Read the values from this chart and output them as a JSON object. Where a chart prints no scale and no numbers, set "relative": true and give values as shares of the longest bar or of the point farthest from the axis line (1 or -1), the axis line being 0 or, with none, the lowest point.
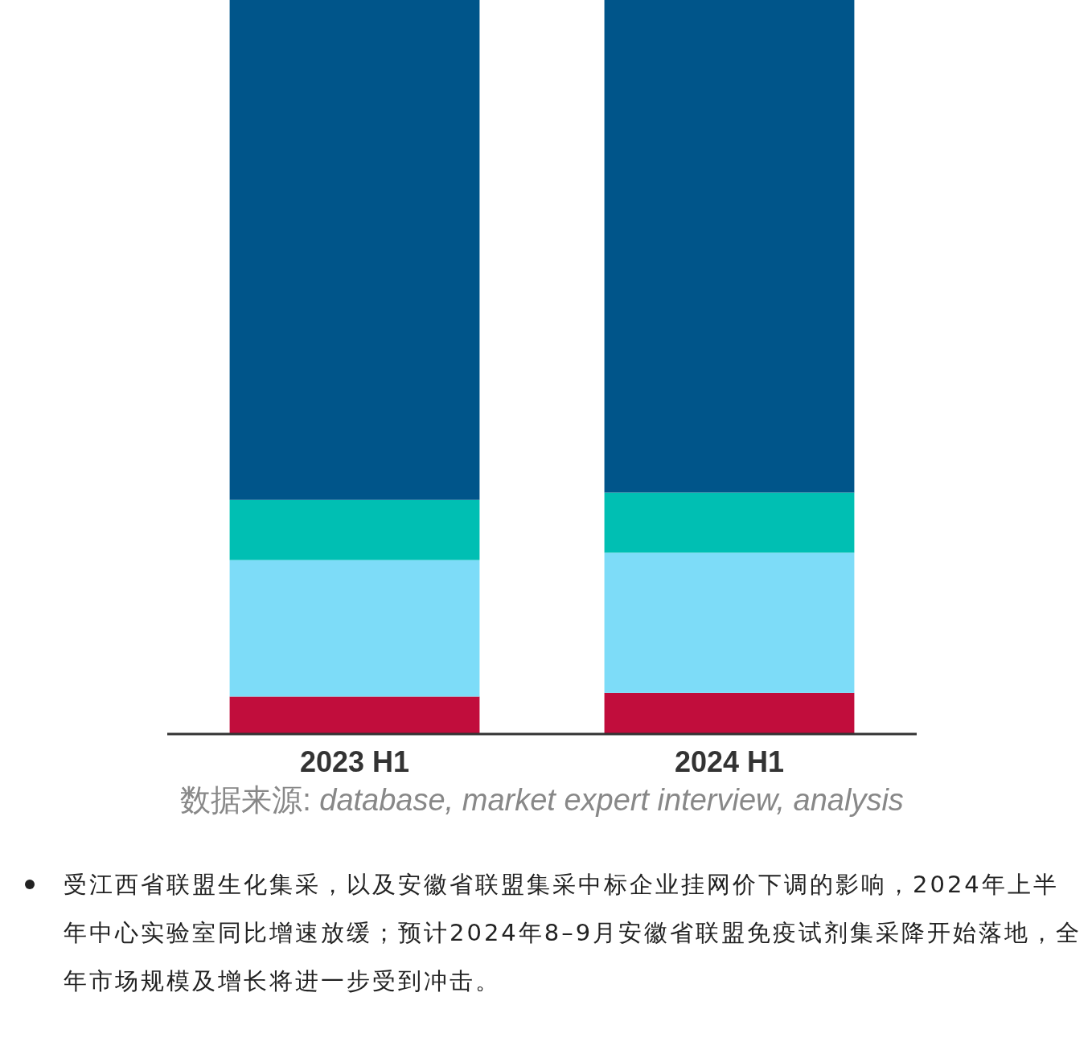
{
  "chart_data": {
    "type": "bar",
    "stacked": true,
    "relative": true,
    "categories": [
      "2023 H1",
      "2024 H1"
    ],
    "series": [
      {
        "color": "#c10d3c",
        "values": [
          0.051,
          0.056
        ]
      },
      {
        "color": "#7ddcf8",
        "values": [
          0.186,
          0.191
        ]
      },
      {
        "color": "#00bfb3",
        "values": [
          0.082,
          0.082
        ]
      },
      {
        "color": "#00558a",
        "values": [
          0.681,
          0.671
        ]
      }
    ],
    "annotations": [
      "数据来源: database, market expert interview, analysis",
      "受江西省联盟生化集采，以及安徽省联盟集采中标企业挂网价下调的影响，2024年上半年中心实验室同比增速放缓；预计2024年8–9月安徽省联盟免疫试剂集采降开始落地，全年市场规模及增长将进一步受到冲击。"
    ]
  }
}
